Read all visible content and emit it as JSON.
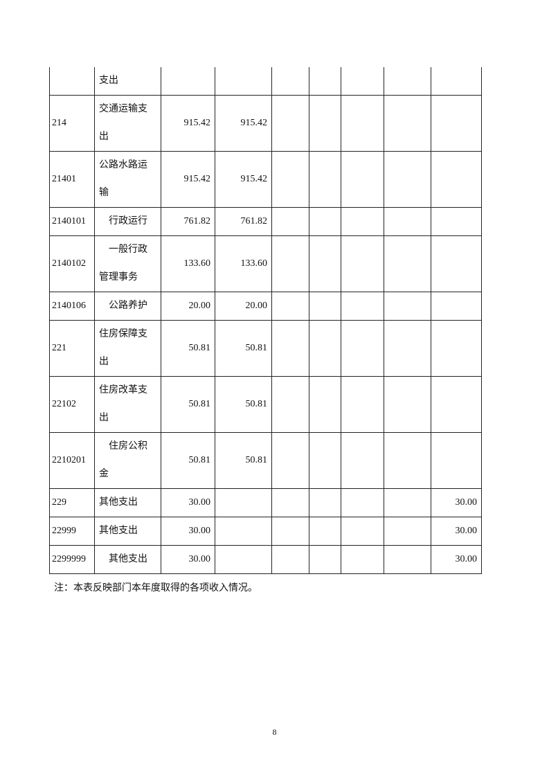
{
  "table": {
    "rows": [
      {
        "code": "",
        "name": "支出",
        "indent": false,
        "c1": "",
        "c2": "",
        "c7": ""
      },
      {
        "code": "214",
        "name": "交通运输支出",
        "indent": false,
        "c1": "915.42",
        "c2": "915.42",
        "c7": ""
      },
      {
        "code": "21401",
        "name": "公路水路运输",
        "indent": false,
        "c1": "915.42",
        "c2": "915.42",
        "c7": ""
      },
      {
        "code": "2140101",
        "name": "行政运行",
        "indent": true,
        "c1": "761.82",
        "c2": "761.82",
        "c7": ""
      },
      {
        "code": "2140102",
        "name": "一般行政管理事务",
        "indent": true,
        "c1": "133.60",
        "c2": "133.60",
        "c7": ""
      },
      {
        "code": "2140106",
        "name": "公路养护",
        "indent": true,
        "c1": "20.00",
        "c2": "20.00",
        "c7": ""
      },
      {
        "code": "221",
        "name": "住房保障支出",
        "indent": false,
        "c1": "50.81",
        "c2": "50.81",
        "c7": ""
      },
      {
        "code": "22102",
        "name": "住房改革支出",
        "indent": false,
        "c1": "50.81",
        "c2": "50.81",
        "c7": ""
      },
      {
        "code": "2210201",
        "name": "住房公积金",
        "indent": true,
        "c1": "50.81",
        "c2": "50.81",
        "c7": ""
      },
      {
        "code": "229",
        "name": "其他支出",
        "indent": false,
        "c1": "30.00",
        "c2": "",
        "c7": "30.00"
      },
      {
        "code": "22999",
        "name": "其他支出",
        "indent": false,
        "c1": "30.00",
        "c2": "",
        "c7": "30.00"
      },
      {
        "code": "2299999",
        "name": "其他支出",
        "indent": true,
        "c1": "30.00",
        "c2": "",
        "c7": "30.00"
      }
    ]
  },
  "note": "注：本表反映部门本年度取得的各项收入情况。",
  "page_number": "8"
}
